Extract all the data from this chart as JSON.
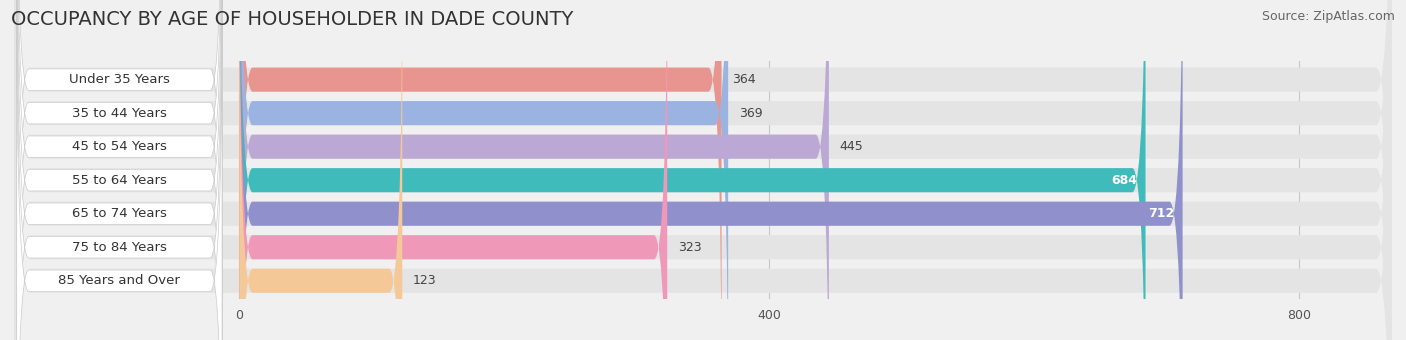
{
  "title": "OCCUPANCY BY AGE OF HOUSEHOLDER IN DADE COUNTY",
  "source": "Source: ZipAtlas.com",
  "categories": [
    "Under 35 Years",
    "35 to 44 Years",
    "45 to 54 Years",
    "55 to 64 Years",
    "65 to 74 Years",
    "75 to 84 Years",
    "85 Years and Over"
  ],
  "values": [
    364,
    369,
    445,
    684,
    712,
    323,
    123
  ],
  "bar_colors": [
    "#E89590",
    "#9BB3E0",
    "#BBA8D4",
    "#40BBBB",
    "#9090CC",
    "#F098B8",
    "#F5C898"
  ],
  "xlim": [
    -170,
    870
  ],
  "xdata_min": 0,
  "xdata_max": 800,
  "xticks": [
    0,
    400,
    800
  ],
  "bg_color": "#f0f0f0",
  "bar_bg_color": "#e4e4e4",
  "title_fontsize": 14,
  "source_fontsize": 9,
  "label_fontsize": 9.5,
  "value_fontsize": 9,
  "bar_height": 0.72,
  "figsize": [
    14.06,
    3.4
  ],
  "dpi": 100
}
